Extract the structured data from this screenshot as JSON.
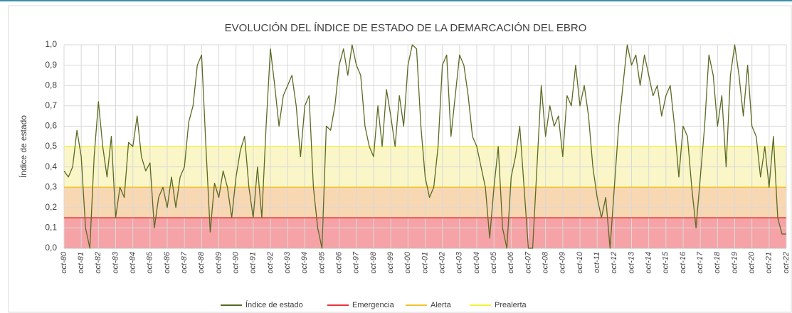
{
  "chart_data": {
    "type": "line",
    "title": "EVOLUCIÓN DEL ÍNDICE DE ESTADO DE LA DEMARCACIÓN DEL EBRO",
    "y_label": "Índice de estado",
    "xlim": [
      "1980-10",
      "2022-10"
    ],
    "ylim": [
      0,
      1
    ],
    "grid": true,
    "legend": "bottom",
    "yticks": [
      {
        "value": 0,
        "label": "0,0"
      },
      {
        "value": 0.1,
        "label": "0,1"
      },
      {
        "value": 0.2,
        "label": "0,2"
      },
      {
        "value": 0.3,
        "label": "0,3"
      },
      {
        "value": 0.4,
        "label": "0,4"
      },
      {
        "value": 0.5,
        "label": "0,5"
      },
      {
        "value": 0.6,
        "label": "0,6"
      },
      {
        "value": 0.7,
        "label": "0,7"
      },
      {
        "value": 0.8,
        "label": "0,8"
      },
      {
        "value": 0.9,
        "label": "0,9"
      },
      {
        "value": 1,
        "label": "1,0"
      }
    ],
    "xticks": [
      {
        "value": "1980-10",
        "label": "oct-80"
      },
      {
        "value": "1981-10",
        "label": "oct-81"
      },
      {
        "value": "1982-10",
        "label": "oct-82"
      },
      {
        "value": "1983-10",
        "label": "oct-83"
      },
      {
        "value": "1984-10",
        "label": "oct-84"
      },
      {
        "value": "1985-10",
        "label": "oct-85"
      },
      {
        "value": "1986-10",
        "label": "oct-86"
      },
      {
        "value": "1987-10",
        "label": "oct-87"
      },
      {
        "value": "1988-10",
        "label": "oct-88"
      },
      {
        "value": "1989-10",
        "label": "oct-89"
      },
      {
        "value": "1990-10",
        "label": "oct-90"
      },
      {
        "value": "1991-10",
        "label": "oct-91"
      },
      {
        "value": "1992-10",
        "label": "oct-92"
      },
      {
        "value": "1993-10",
        "label": "oct-93"
      },
      {
        "value": "1994-10",
        "label": "oct-94"
      },
      {
        "value": "1995-10",
        "label": "oct-95"
      },
      {
        "value": "1996-10",
        "label": "oct-96"
      },
      {
        "value": "1997-10",
        "label": "oct-97"
      },
      {
        "value": "1998-10",
        "label": "oct-98"
      },
      {
        "value": "1999-10",
        "label": "oct-99"
      },
      {
        "value": "2000-10",
        "label": "oct-00"
      },
      {
        "value": "2001-10",
        "label": "oct-01"
      },
      {
        "value": "2002-10",
        "label": "oct-02"
      },
      {
        "value": "2003-10",
        "label": "oct-03"
      },
      {
        "value": "2004-10",
        "label": "oct-04"
      },
      {
        "value": "2005-10",
        "label": "oct-05"
      },
      {
        "value": "2006-10",
        "label": "oct-06"
      },
      {
        "value": "2007-10",
        "label": "oct-07"
      },
      {
        "value": "2008-10",
        "label": "oct-08"
      },
      {
        "value": "2009-10",
        "label": "oct-09"
      },
      {
        "value": "2010-10",
        "label": "oct-10"
      },
      {
        "value": "2011-10",
        "label": "oct-11"
      },
      {
        "value": "2012-10",
        "label": "oct-12"
      },
      {
        "value": "2013-10",
        "label": "oct-13"
      },
      {
        "value": "2014-10",
        "label": "oct-14"
      },
      {
        "value": "2015-10",
        "label": "oct-15"
      },
      {
        "value": "2016-10",
        "label": "oct-16"
      },
      {
        "value": "2017-10",
        "label": "oct-17"
      },
      {
        "value": "2018-10",
        "label": "oct-18"
      },
      {
        "value": "2019-10",
        "label": "oct-19"
      },
      {
        "value": "2020-10",
        "label": "oct-20"
      },
      {
        "value": "2021-10",
        "label": "oct-21"
      },
      {
        "value": "2022-10",
        "label": "oct-22"
      }
    ],
    "x": [
      "1980-10",
      "1981-01",
      "1981-04",
      "1981-07",
      "1981-10",
      "1982-01",
      "1982-04",
      "1982-07",
      "1982-10",
      "1983-01",
      "1983-04",
      "1983-07",
      "1983-10",
      "1984-01",
      "1984-04",
      "1984-07",
      "1984-10",
      "1985-01",
      "1985-04",
      "1985-07",
      "1985-10",
      "1986-01",
      "1986-04",
      "1986-07",
      "1986-10",
      "1987-01",
      "1987-04",
      "1987-07",
      "1987-10",
      "1988-01",
      "1988-04",
      "1988-07",
      "1988-10",
      "1989-01",
      "1989-04",
      "1989-07",
      "1989-10",
      "1990-01",
      "1990-04",
      "1990-07",
      "1990-10",
      "1991-01",
      "1991-04",
      "1991-07",
      "1991-10",
      "1992-01",
      "1992-04",
      "1992-07",
      "1992-10",
      "1993-01",
      "1993-04",
      "1993-07",
      "1993-10",
      "1994-01",
      "1994-04",
      "1994-07",
      "1994-10",
      "1995-01",
      "1995-04",
      "1995-07",
      "1995-10",
      "1996-01",
      "1996-04",
      "1996-07",
      "1996-10",
      "1997-01",
      "1997-04",
      "1997-07",
      "1997-10",
      "1998-01",
      "1998-04",
      "1998-07",
      "1998-10",
      "1999-01",
      "1999-04",
      "1999-07",
      "1999-10",
      "2000-01",
      "2000-04",
      "2000-07",
      "2000-10",
      "2001-01",
      "2001-04",
      "2001-07",
      "2001-10",
      "2002-01",
      "2002-04",
      "2002-07",
      "2002-10",
      "2003-01",
      "2003-04",
      "2003-07",
      "2003-10",
      "2004-01",
      "2004-04",
      "2004-07",
      "2004-10",
      "2005-01",
      "2005-04",
      "2005-07",
      "2005-10",
      "2006-01",
      "2006-04",
      "2006-07",
      "2006-10",
      "2007-01",
      "2007-04",
      "2007-07",
      "2007-10",
      "2008-01",
      "2008-04",
      "2008-07",
      "2008-10",
      "2009-01",
      "2009-04",
      "2009-07",
      "2009-10",
      "2010-01",
      "2010-04",
      "2010-07",
      "2010-10",
      "2011-01",
      "2011-04",
      "2011-07",
      "2011-10",
      "2012-01",
      "2012-04",
      "2012-07",
      "2012-10",
      "2013-01",
      "2013-04",
      "2013-07",
      "2013-10",
      "2014-01",
      "2014-04",
      "2014-07",
      "2014-10",
      "2015-01",
      "2015-04",
      "2015-07",
      "2015-10",
      "2016-01",
      "2016-04",
      "2016-07",
      "2016-10",
      "2017-01",
      "2017-04",
      "2017-07",
      "2017-10",
      "2018-01",
      "2018-04",
      "2018-07",
      "2018-10",
      "2019-01",
      "2019-04",
      "2019-07",
      "2019-10",
      "2020-01",
      "2020-04",
      "2020-07",
      "2020-10",
      "2021-01",
      "2021-04",
      "2021-07",
      "2021-10",
      "2022-01",
      "2022-04",
      "2022-07",
      "2022-10"
    ],
    "series": [
      {
        "name": "Índice de estado",
        "color": "#5a6b22",
        "values": [
          0.38,
          0.35,
          0.4,
          0.58,
          0.45,
          0.1,
          0.0,
          0.45,
          0.72,
          0.5,
          0.35,
          0.55,
          0.15,
          0.3,
          0.25,
          0.52,
          0.5,
          0.65,
          0.45,
          0.38,
          0.42,
          0.1,
          0.25,
          0.3,
          0.2,
          0.35,
          0.2,
          0.35,
          0.4,
          0.62,
          0.7,
          0.9,
          0.95,
          0.5,
          0.08,
          0.32,
          0.25,
          0.38,
          0.3,
          0.15,
          0.35,
          0.48,
          0.55,
          0.3,
          0.15,
          0.4,
          0.15,
          0.6,
          0.98,
          0.8,
          0.6,
          0.75,
          0.8,
          0.85,
          0.7,
          0.45,
          0.7,
          0.75,
          0.3,
          0.1,
          0.0,
          0.6,
          0.58,
          0.7,
          0.9,
          0.98,
          0.85,
          1.0,
          0.9,
          0.85,
          0.6,
          0.5,
          0.45,
          0.7,
          0.5,
          0.78,
          0.65,
          0.5,
          0.75,
          0.6,
          0.9,
          1.0,
          0.98,
          0.6,
          0.35,
          0.25,
          0.3,
          0.5,
          0.9,
          0.95,
          0.55,
          0.75,
          0.95,
          0.9,
          0.75,
          0.55,
          0.5,
          0.4,
          0.3,
          0.05,
          0.3,
          0.5,
          0.1,
          0.0,
          0.35,
          0.45,
          0.6,
          0.3,
          0.0,
          0.0,
          0.4,
          0.8,
          0.55,
          0.7,
          0.6,
          0.65,
          0.45,
          0.75,
          0.7,
          0.9,
          0.7,
          0.8,
          0.65,
          0.4,
          0.25,
          0.15,
          0.25,
          0.0,
          0.3,
          0.6,
          0.8,
          1.0,
          0.9,
          0.95,
          0.8,
          0.95,
          0.85,
          0.75,
          0.8,
          0.65,
          0.75,
          0.8,
          0.6,
          0.35,
          0.6,
          0.55,
          0.3,
          0.1,
          0.35,
          0.6,
          0.95,
          0.85,
          0.6,
          0.75,
          0.4,
          0.85,
          1.0,
          0.85,
          0.65,
          0.9,
          0.6,
          0.55,
          0.35,
          0.5,
          0.3,
          0.55,
          0.15,
          0.07,
          0.07
        ]
      }
    ],
    "thresholds": [
      {
        "name": "Emergencia",
        "value": 0.15,
        "color": "#e8333a",
        "band": "#f5a3a6"
      },
      {
        "name": "Alerta",
        "value": 0.3,
        "color": "#f2c230",
        "band": "#f8d7b3"
      },
      {
        "name": "Prealerta",
        "value": 0.5,
        "color": "#f5f03a",
        "band": "#faf6c8"
      }
    ]
  }
}
